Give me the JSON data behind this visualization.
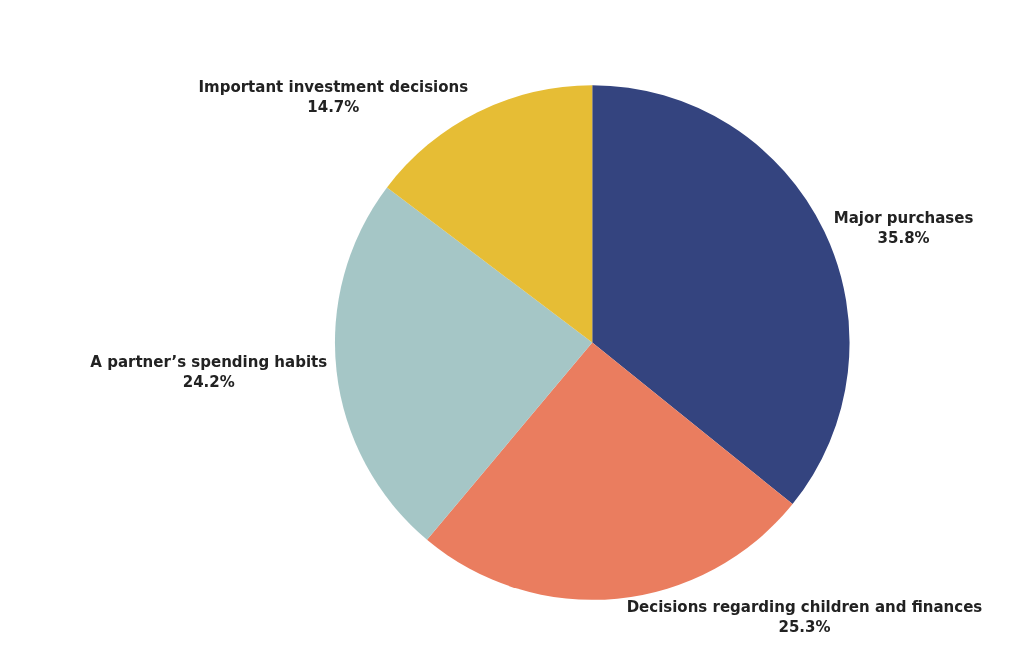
{
  "chart_data": {
    "type": "pie",
    "categories": [
      "Major purchases",
      "Decisions regarding children and finances",
      "A partner’s spending habits",
      "Important investment decisions"
    ],
    "values": [
      35.8,
      25.3,
      24.2,
      14.7
    ],
    "value_labels": [
      "35.8%",
      "25.3%",
      "24.2%",
      "14.7%"
    ],
    "colors": [
      "#34447f",
      "#ea7d5f",
      "#a5c6c6",
      "#e6bd35"
    ],
    "legend": false
  }
}
